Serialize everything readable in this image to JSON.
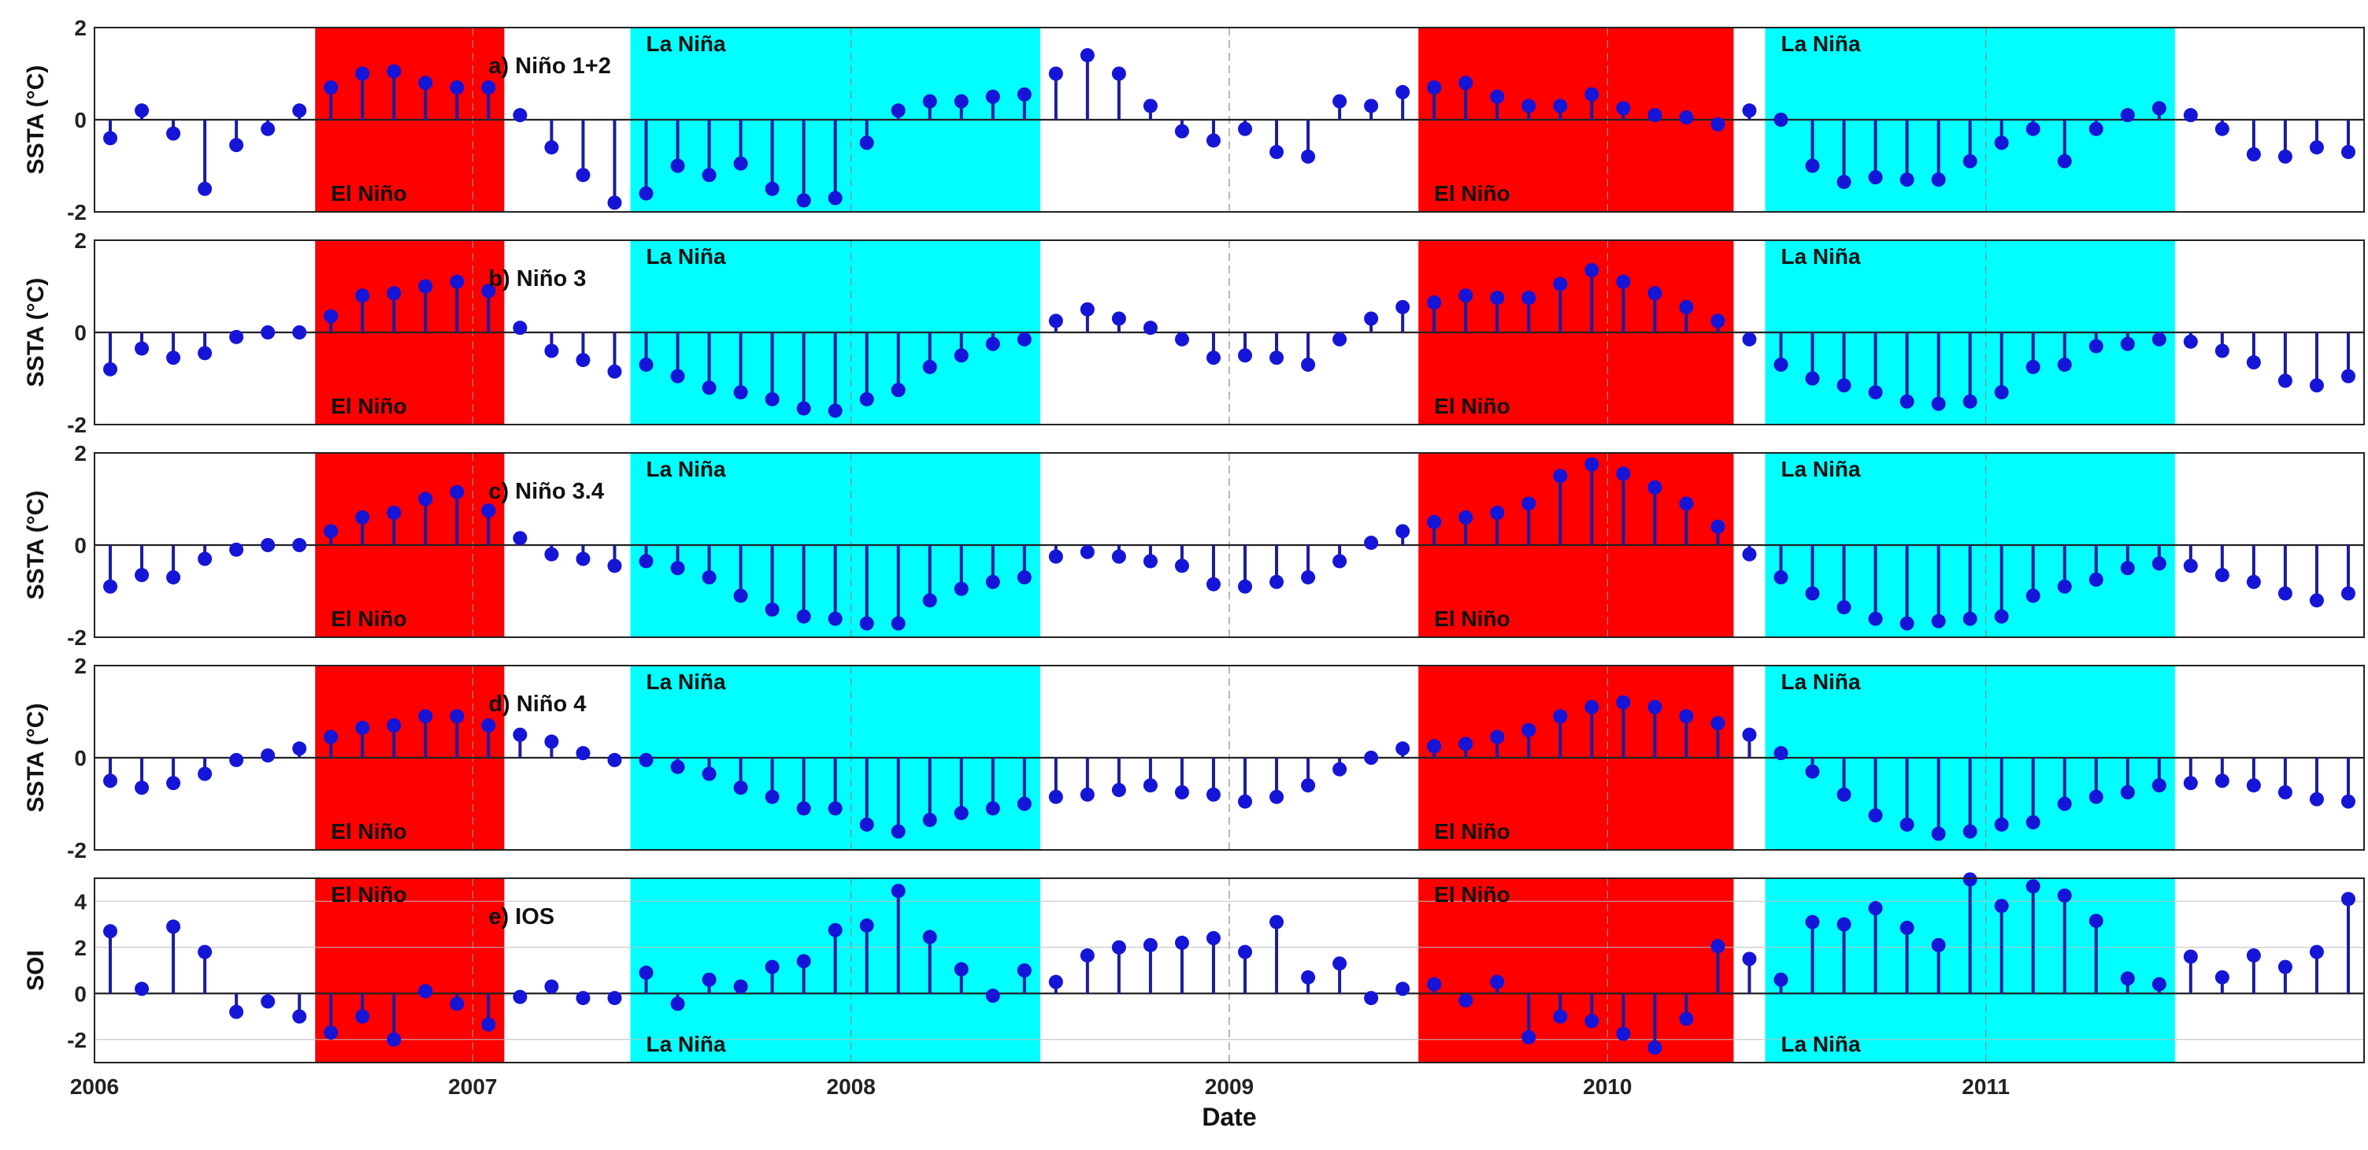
{
  "chart_data": {
    "type": "stem",
    "x_dates": [
      "2006-01",
      "2006-02",
      "2006-03",
      "2006-04",
      "2006-05",
      "2006-06",
      "2006-07",
      "2006-08",
      "2006-09",
      "2006-10",
      "2006-11",
      "2006-12",
      "2007-01",
      "2007-02",
      "2007-03",
      "2007-04",
      "2007-05",
      "2007-06",
      "2007-07",
      "2007-08",
      "2007-09",
      "2007-10",
      "2007-11",
      "2007-12",
      "2008-01",
      "2008-02",
      "2008-03",
      "2008-04",
      "2008-05",
      "2008-06",
      "2008-07",
      "2008-08",
      "2008-09",
      "2008-10",
      "2008-11",
      "2008-12",
      "2009-01",
      "2009-02",
      "2009-03",
      "2009-04",
      "2009-05",
      "2009-06",
      "2009-07",
      "2009-08",
      "2009-09",
      "2009-10",
      "2009-11",
      "2009-12",
      "2010-01",
      "2010-02",
      "2010-03",
      "2010-04",
      "2010-05",
      "2010-06",
      "2010-07",
      "2010-08",
      "2010-09",
      "2010-10",
      "2010-11",
      "2010-12",
      "2011-01",
      "2011-02",
      "2011-03",
      "2011-04",
      "2011-05",
      "2011-06",
      "2011-07",
      "2011-08",
      "2011-09",
      "2011-10",
      "2011-11",
      "2011-12"
    ],
    "x_ticks": [
      "2006",
      "2007",
      "2008",
      "2009",
      "2010",
      "2011"
    ],
    "xlabel": "Date",
    "marker_color": "#1515d8",
    "stem_color": "#1c1c9e",
    "events": [
      {
        "label": "El Niño",
        "start": "2006-08",
        "end": "2007-01",
        "color": "#ff0000"
      },
      {
        "label": "La Niña",
        "start": "2007-06",
        "end": "2008-06",
        "color": "#00ffff"
      },
      {
        "label": "El Niño",
        "start": "2009-07",
        "end": "2010-04",
        "color": "#ff0000"
      },
      {
        "label": "La Niña",
        "start": "2010-06",
        "end": "2011-06",
        "color": "#00ffff"
      }
    ],
    "panels": [
      {
        "title": "a) Niño 1+2",
        "ylabel": "SSTA (°C)",
        "ylim": [
          -2,
          2
        ],
        "yticks": [
          -2,
          0,
          2
        ],
        "values": [
          -0.4,
          0.2,
          -0.3,
          -1.5,
          -0.55,
          -0.2,
          0.2,
          0.7,
          1.0,
          1.05,
          0.8,
          0.7,
          0.7,
          0.1,
          -0.6,
          -1.2,
          -1.8,
          -1.6,
          -1.0,
          -1.2,
          -0.95,
          -1.5,
          -1.75,
          -1.7,
          -0.5,
          0.2,
          0.4,
          0.4,
          0.5,
          0.55,
          1.0,
          1.4,
          1.0,
          0.3,
          -0.25,
          -0.45,
          -0.2,
          -0.7,
          -0.8,
          0.4,
          0.3,
          0.6,
          0.7,
          0.8,
          0.5,
          0.3,
          0.3,
          0.55,
          0.25,
          0.1,
          0.05,
          -0.1,
          0.2,
          0.0,
          -1.0,
          -1.35,
          -1.25,
          -1.3,
          -1.3,
          -0.9,
          -0.5,
          -0.2,
          -0.9,
          -0.2,
          0.1,
          0.25,
          0.1,
          -0.2,
          -0.75,
          -0.8,
          -0.6,
          -0.7
        ]
      },
      {
        "title": "b) Niño 3",
        "ylabel": "SSTA (°C)",
        "ylim": [
          -2,
          2
        ],
        "yticks": [
          -2,
          0,
          2
        ],
        "values": [
          -0.8,
          -0.35,
          -0.55,
          -0.45,
          -0.1,
          0.0,
          0.0,
          0.35,
          0.8,
          0.85,
          1.0,
          1.1,
          0.9,
          0.1,
          -0.4,
          -0.6,
          -0.85,
          -0.7,
          -0.95,
          -1.2,
          -1.3,
          -1.45,
          -1.65,
          -1.7,
          -1.45,
          -1.25,
          -0.75,
          -0.5,
          -0.25,
          -0.15,
          0.25,
          0.5,
          0.3,
          0.1,
          -0.15,
          -0.55,
          -0.5,
          -0.55,
          -0.7,
          -0.15,
          0.3,
          0.55,
          0.65,
          0.8,
          0.75,
          0.75,
          1.05,
          1.35,
          1.1,
          0.85,
          0.55,
          0.25,
          -0.15,
          -0.7,
          -1.0,
          -1.15,
          -1.3,
          -1.5,
          -1.55,
          -1.5,
          -1.3,
          -0.75,
          -0.7,
          -0.3,
          -0.25,
          -0.15,
          -0.2,
          -0.4,
          -0.65,
          -1.05,
          -1.15,
          -0.95
        ]
      },
      {
        "title": "c) Niño 3.4",
        "ylabel": "SSTA (°C)",
        "ylim": [
          -2,
          2
        ],
        "yticks": [
          -2,
          0,
          2
        ],
        "values": [
          -0.9,
          -0.65,
          -0.7,
          -0.3,
          -0.1,
          0.0,
          0.0,
          0.3,
          0.6,
          0.7,
          1.0,
          1.15,
          0.75,
          0.15,
          -0.2,
          -0.3,
          -0.45,
          -0.35,
          -0.5,
          -0.7,
          -1.1,
          -1.4,
          -1.55,
          -1.6,
          -1.7,
          -1.7,
          -1.2,
          -0.95,
          -0.8,
          -0.7,
          -0.25,
          -0.15,
          -0.25,
          -0.35,
          -0.45,
          -0.85,
          -0.9,
          -0.8,
          -0.7,
          -0.35,
          0.05,
          0.3,
          0.5,
          0.6,
          0.7,
          0.9,
          1.5,
          1.75,
          1.55,
          1.25,
          0.9,
          0.4,
          -0.2,
          -0.7,
          -1.05,
          -1.35,
          -1.6,
          -1.7,
          -1.65,
          -1.6,
          -1.55,
          -1.1,
          -0.9,
          -0.75,
          -0.5,
          -0.4,
          -0.45,
          -0.65,
          -0.8,
          -1.05,
          -1.2,
          -1.05
        ]
      },
      {
        "title": "d) Niño 4",
        "ylabel": "SSTA (°C)",
        "ylim": [
          -2,
          2
        ],
        "yticks": [
          -2,
          0,
          2
        ],
        "values": [
          -0.5,
          -0.65,
          -0.55,
          -0.35,
          -0.05,
          0.05,
          0.2,
          0.45,
          0.65,
          0.7,
          0.9,
          0.9,
          0.7,
          0.5,
          0.35,
          0.1,
          -0.05,
          -0.05,
          -0.2,
          -0.35,
          -0.65,
          -0.85,
          -1.1,
          -1.1,
          -1.45,
          -1.6,
          -1.35,
          -1.2,
          -1.1,
          -1.0,
          -0.85,
          -0.8,
          -0.7,
          -0.6,
          -0.75,
          -0.8,
          -0.95,
          -0.85,
          -0.6,
          -0.25,
          0.0,
          0.2,
          0.25,
          0.3,
          0.45,
          0.6,
          0.9,
          1.1,
          1.2,
          1.1,
          0.9,
          0.75,
          0.5,
          0.1,
          -0.3,
          -0.8,
          -1.25,
          -1.45,
          -1.65,
          -1.6,
          -1.45,
          -1.4,
          -1.0,
          -0.85,
          -0.75,
          -0.6,
          -0.55,
          -0.5,
          -0.6,
          -0.75,
          -0.9,
          -0.95
        ]
      },
      {
        "title": "e) IOS",
        "ylabel": "SOI",
        "ylim": [
          -3,
          5
        ],
        "yticks": [
          -2,
          0,
          2,
          4
        ],
        "values": [
          2.7,
          0.2,
          2.9,
          1.8,
          -0.8,
          -0.35,
          -1.0,
          -1.7,
          -1.0,
          -2.0,
          0.1,
          -0.45,
          -1.35,
          -0.15,
          0.3,
          -0.2,
          -0.2,
          0.9,
          -0.45,
          0.6,
          0.3,
          1.15,
          1.4,
          2.75,
          2.95,
          4.45,
          2.45,
          1.05,
          -0.1,
          1.0,
          0.5,
          1.65,
          2.0,
          2.1,
          2.2,
          2.4,
          1.8,
          3.1,
          0.7,
          1.3,
          -0.2,
          0.2,
          0.4,
          -0.3,
          0.5,
          -1.9,
          -1.0,
          -1.2,
          -1.75,
          -2.35,
          -1.1,
          2.05,
          1.5,
          0.6,
          3.1,
          3.0,
          3.7,
          2.85,
          2.1,
          4.95,
          3.8,
          4.65,
          4.25,
          3.15,
          0.65,
          0.4,
          1.6,
          0.7,
          1.65,
          1.15,
          1.8,
          4.1
        ]
      }
    ]
  }
}
